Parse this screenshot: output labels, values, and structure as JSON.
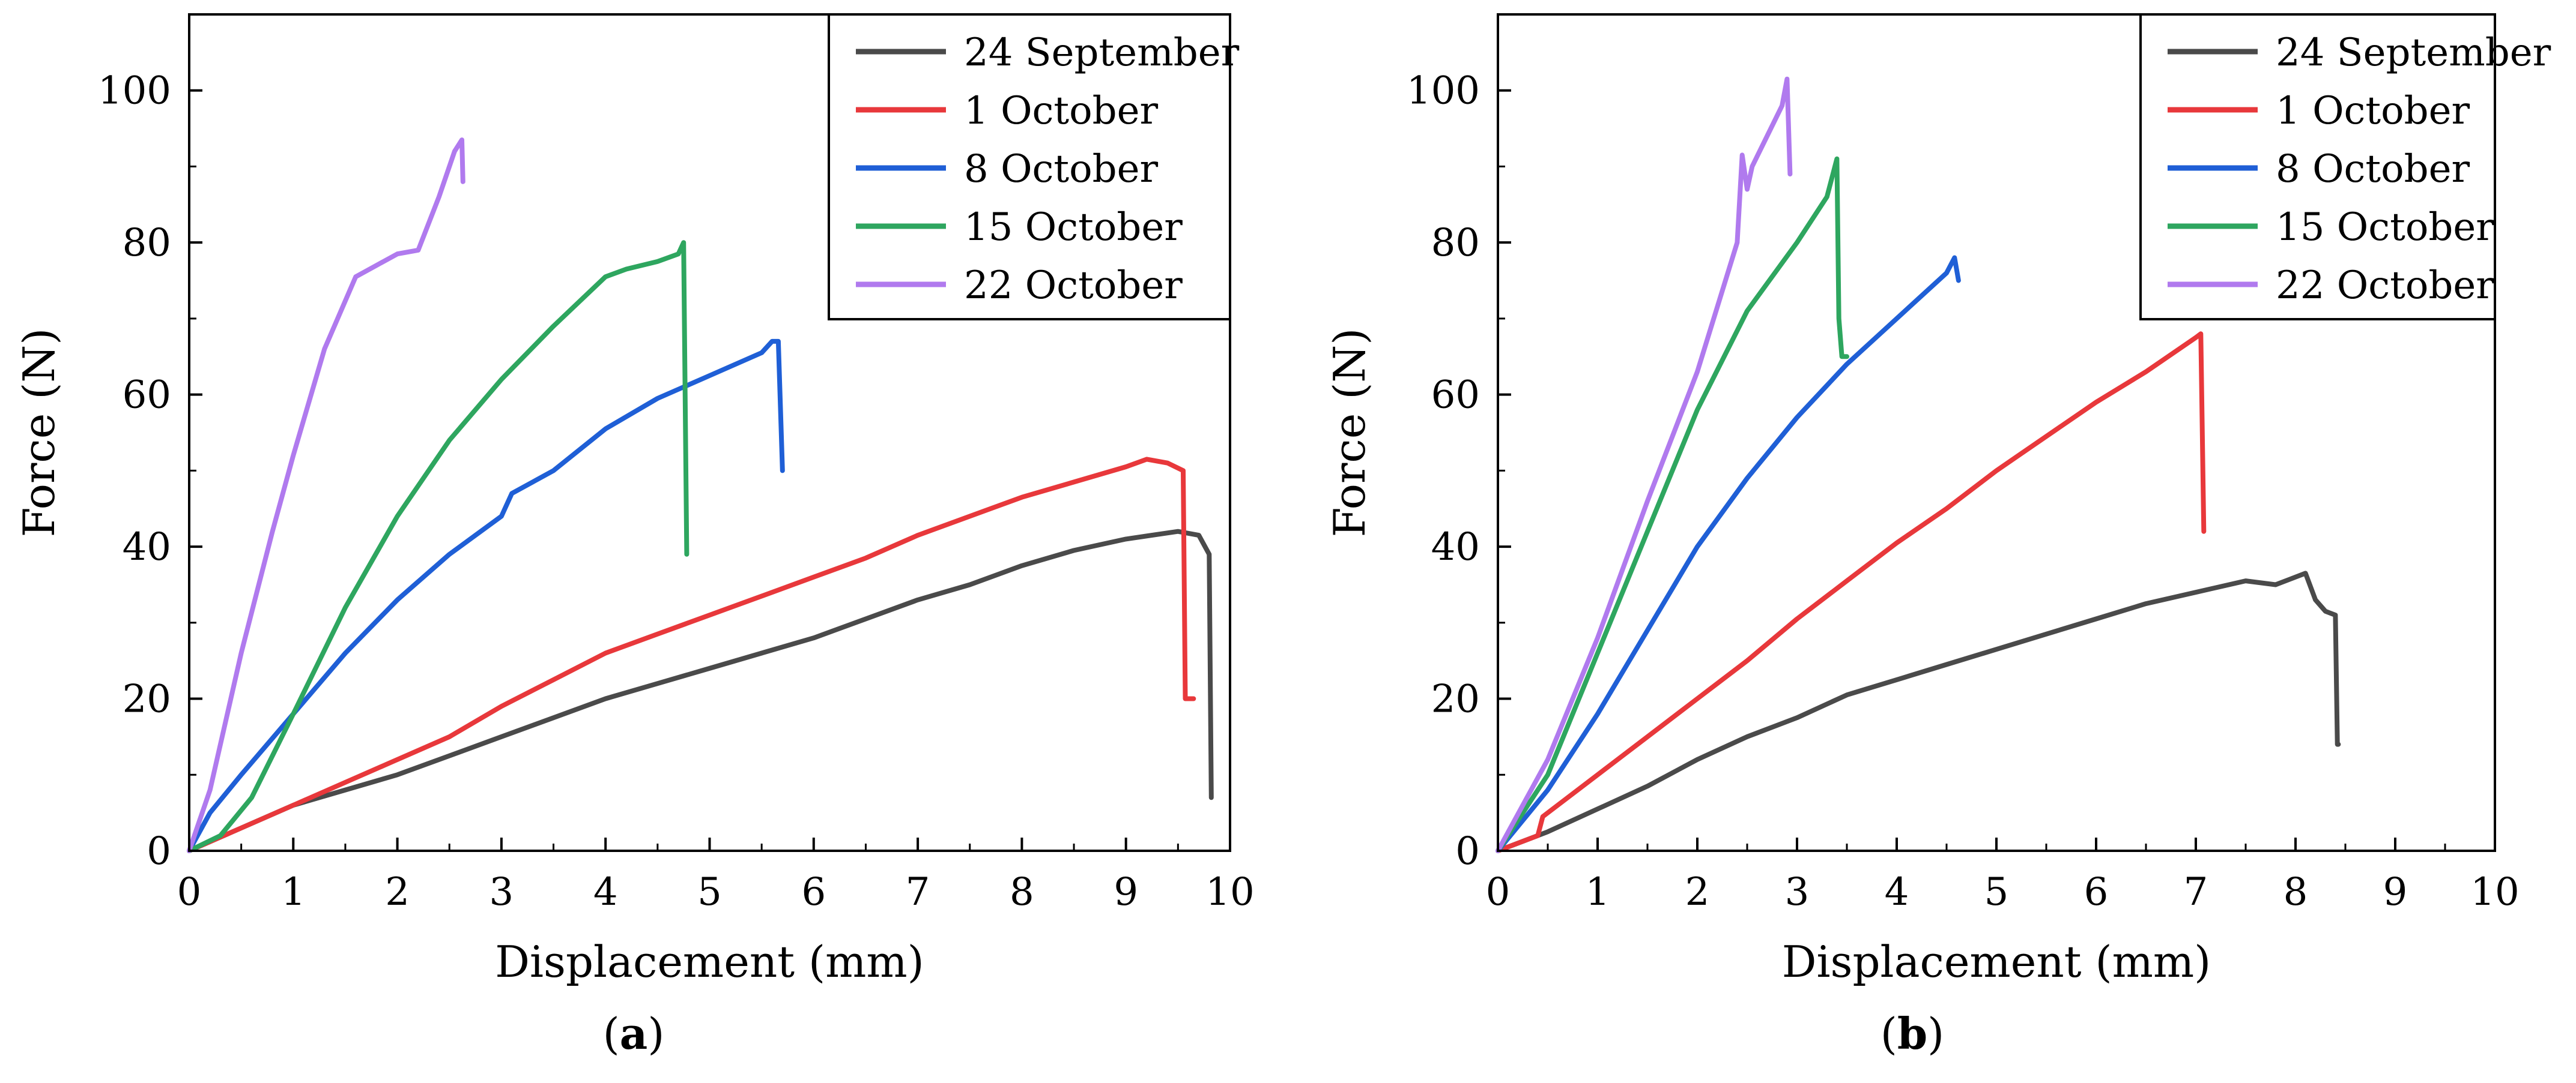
{
  "chart_data": [
    {
      "type": "line",
      "panel_label": "a",
      "xlabel": "Displacement (mm)",
      "ylabel": "Force (N)",
      "xlim": [
        0,
        10
      ],
      "ylim": [
        0,
        110
      ],
      "xticks": [
        0,
        1,
        2,
        3,
        4,
        5,
        6,
        7,
        8,
        9,
        10
      ],
      "yticks": [
        0,
        20,
        40,
        60,
        80,
        100
      ],
      "legend_position": "top-right",
      "grid": false,
      "series": [
        {
          "name": "24 September",
          "color": "#4a4a4a",
          "x": [
            0,
            0.5,
            1,
            1.5,
            2,
            2.5,
            3,
            3.5,
            4,
            4.5,
            5,
            5.5,
            6,
            6.5,
            7,
            7.5,
            8,
            8.5,
            9,
            9.5,
            9.7,
            9.8,
            9.82
          ],
          "y": [
            0,
            3,
            6,
            8,
            10,
            12.5,
            15,
            17.5,
            20,
            22,
            24,
            26,
            28,
            30.5,
            33,
            35,
            37.5,
            39.5,
            41,
            42,
            41.5,
            39,
            7
          ]
        },
        {
          "name": "1 October",
          "color": "#e8383b",
          "x": [
            0,
            0.5,
            1,
            1.5,
            2,
            2.5,
            3,
            3.5,
            4,
            4.5,
            5,
            5.5,
            6,
            6.5,
            7,
            7.5,
            8,
            8.5,
            9,
            9.2,
            9.4,
            9.55,
            9.57,
            9.65
          ],
          "y": [
            0,
            3,
            6,
            9,
            12,
            15,
            19,
            22.5,
            26,
            28.5,
            31,
            33.5,
            36,
            38.5,
            41.5,
            44,
            46.5,
            48.5,
            50.5,
            51.5,
            51,
            50,
            20,
            20
          ]
        },
        {
          "name": "8 October",
          "color": "#1f5fd6",
          "x": [
            0,
            0.2,
            0.5,
            1,
            1.5,
            2,
            2.5,
            3,
            3.1,
            3.5,
            4,
            4.5,
            5,
            5.5,
            5.6,
            5.66,
            5.7
          ],
          "y": [
            0,
            5,
            10,
            18,
            26,
            33,
            39,
            44,
            47,
            50,
            55.5,
            59.5,
            62.5,
            65.5,
            67,
            67,
            50
          ]
        },
        {
          "name": "15 October",
          "color": "#2ea65f",
          "x": [
            0,
            0.3,
            0.6,
            1,
            1.5,
            2,
            2.5,
            3,
            3.5,
            4,
            4.2,
            4.5,
            4.7,
            4.75,
            4.78
          ],
          "y": [
            0,
            2,
            7,
            18,
            32,
            44,
            54,
            62,
            69,
            75.5,
            76.5,
            77.5,
            78.5,
            80,
            39
          ]
        },
        {
          "name": "22 October",
          "color": "#b07aee",
          "x": [
            0,
            0.2,
            0.5,
            0.8,
            1,
            1.3,
            1.6,
            1.8,
            2,
            2.2,
            2.4,
            2.55,
            2.62,
            2.63
          ],
          "y": [
            0,
            8,
            26,
            42,
            52,
            66,
            75.5,
            77,
            78.5,
            79,
            86,
            92,
            93.5,
            88
          ]
        }
      ]
    },
    {
      "type": "line",
      "panel_label": "b",
      "xlabel": "Displacement (mm)",
      "ylabel": "Force (N)",
      "xlim": [
        0,
        10
      ],
      "ylim": [
        0,
        110
      ],
      "xticks": [
        0,
        1,
        2,
        3,
        4,
        5,
        6,
        7,
        8,
        9,
        10
      ],
      "yticks": [
        0,
        20,
        40,
        60,
        80,
        100
      ],
      "legend_position": "top-right",
      "grid": false,
      "series": [
        {
          "name": "24 September",
          "color": "#4a4a4a",
          "x": [
            0,
            0.5,
            1,
            1.5,
            2,
            2.5,
            3,
            3.5,
            4,
            4.5,
            5,
            5.5,
            6,
            6.5,
            7,
            7.5,
            7.8,
            8.1,
            8.2,
            8.3,
            8.4,
            8.42,
            8.43
          ],
          "y": [
            0,
            2.5,
            5.5,
            8.5,
            12,
            15,
            17.5,
            20.5,
            22.5,
            24.5,
            26.5,
            28.5,
            30.5,
            32.5,
            34,
            35.5,
            35,
            36.5,
            33,
            31.5,
            31,
            14,
            14
          ]
        },
        {
          "name": "1 October",
          "color": "#e8383b",
          "x": [
            0,
            0.4,
            0.45,
            1,
            1.5,
            2,
            2.5,
            3,
            3.5,
            4,
            4.5,
            5,
            5.5,
            6,
            6.5,
            7,
            7.05,
            7.08
          ],
          "y": [
            0,
            2,
            4.5,
            10,
            15,
            20,
            25,
            30.5,
            35.5,
            40.5,
            45,
            50,
            54.5,
            59,
            63,
            67.5,
            68,
            42
          ]
        },
        {
          "name": "8 October",
          "color": "#1f5fd6",
          "x": [
            0,
            0.5,
            1,
            1.5,
            2,
            2.5,
            3,
            3.5,
            4,
            4.5,
            4.58,
            4.62
          ],
          "y": [
            0,
            8,
            18,
            29,
            40,
            49,
            57,
            64,
            70,
            76,
            78,
            75
          ]
        },
        {
          "name": "15 October",
          "color": "#2ea65f",
          "x": [
            0,
            0.5,
            1,
            1.5,
            2,
            2.5,
            3,
            3.3,
            3.4,
            3.42,
            3.45,
            3.5
          ],
          "y": [
            0,
            10,
            26,
            42,
            58,
            71,
            80,
            86,
            91,
            70,
            65,
            65
          ]
        },
        {
          "name": "22 October",
          "color": "#b07aee",
          "x": [
            0,
            0.5,
            1,
            1.5,
            2,
            2.4,
            2.45,
            2.5,
            2.55,
            2.7,
            2.85,
            2.9,
            2.93
          ],
          "y": [
            0,
            12,
            28,
            46,
            63,
            80,
            91.5,
            87,
            90,
            94,
            98,
            101.5,
            89
          ]
        }
      ]
    }
  ]
}
